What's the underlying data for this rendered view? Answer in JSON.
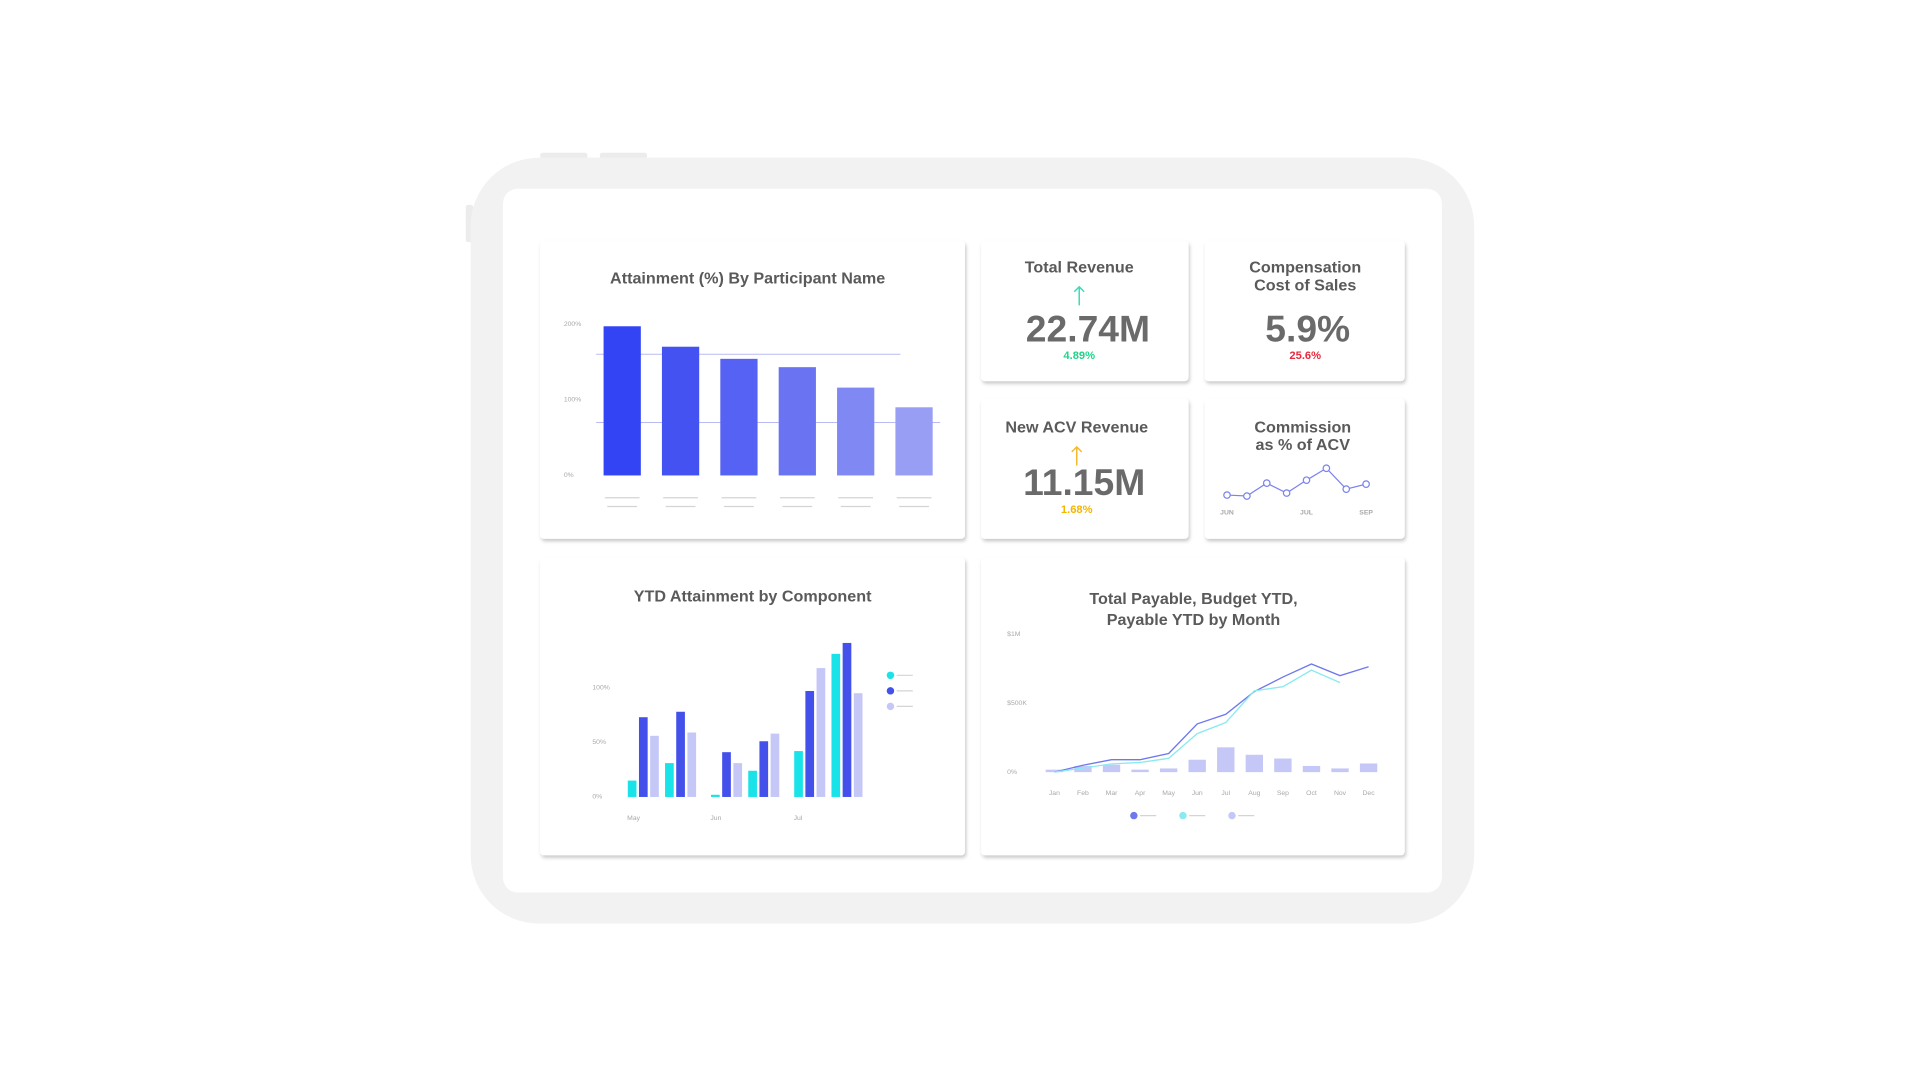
{
  "chart_data": [
    {
      "type": "bar",
      "title_lines": [
        "Attainment (%) By Participant Name"
      ],
      "categories": [
        null,
        null,
        null,
        null,
        null,
        null
      ],
      "values": [
        197,
        170,
        154,
        143,
        116,
        90
      ],
      "colors": [
        "#3344f5",
        "#4452f2",
        "#5662f3",
        "#6a73f2",
        "#8088f3",
        "#989ef4"
      ],
      "ylim": [
        0,
        200
      ],
      "yticks": [
        {
          "value": 0,
          "label": "0%"
        },
        {
          "value": 100,
          "label": "100%"
        },
        {
          "value": 200,
          "label": "200%"
        }
      ],
      "reference_lines": [
        160,
        70
      ]
    },
    {
      "type": "grouped_bar",
      "title_lines": [
        "YTD Attainment by Component"
      ],
      "categories": [
        "May",
        null,
        "Jun",
        null,
        "Jul",
        null
      ],
      "series": [
        {
          "color": "#19e3e8",
          "values": [
            15,
            31,
            2,
            24,
            42,
            131
          ]
        },
        {
          "color": "#4350ea",
          "values": [
            73,
            78,
            41,
            51,
            97,
            141
          ]
        },
        {
          "color": "#c5c8f7",
          "values": [
            56,
            59,
            31,
            58,
            118,
            95
          ]
        }
      ],
      "ylim": [
        0,
        150
      ],
      "yticks": [
        {
          "value": 0,
          "label": "0%"
        },
        {
          "value": 50,
          "label": "50%"
        },
        {
          "value": 100,
          "label": "100%"
        }
      ]
    },
    {
      "type": "combo",
      "title_lines": [
        "Total Payable, Budget YTD,",
        "Payable YTD by Month"
      ],
      "categories": [
        "Jan",
        "Feb",
        "Mar",
        "Apr",
        "May",
        "Jun",
        "Jul",
        "Aug",
        "Sep",
        "Oct",
        "Nov",
        "Dec"
      ],
      "series": [
        {
          "type": "line",
          "color": "#6f78ec",
          "values": [
            0,
            50000,
            90000,
            90000,
            135000,
            350000,
            420000,
            585000,
            690000,
            785000,
            700000,
            765000
          ]
        },
        {
          "type": "line",
          "color": "#8aeaf0",
          "values": [
            0,
            30000,
            60000,
            70000,
            100000,
            280000,
            360000,
            590000,
            620000,
            740000,
            650000,
            null
          ]
        },
        {
          "type": "bar",
          "color": "#c5c8f7",
          "values": [
            18000,
            45000,
            54000,
            18000,
            27000,
            90000,
            180000,
            126000,
            99000,
            45000,
            27000,
            63000
          ]
        }
      ],
      "ylim": [
        0,
        1000000
      ],
      "yticks": [
        {
          "value": 0,
          "label": "0%"
        },
        {
          "value": 500000,
          "label": "$500K"
        },
        {
          "value": 1000000,
          "label": "$1M"
        }
      ]
    },
    {
      "type": "line",
      "title_lines": [
        "Commission",
        "as % of ACV"
      ],
      "categories": [
        "JUN",
        null,
        null,
        null,
        "JUL",
        null,
        null,
        "SEP"
      ],
      "series": [
        {
          "color": "#7b83ee",
          "values": [
            1.4,
            1.3,
            2.6,
            1.6,
            2.9,
            4.1,
            2.0,
            2.5
          ]
        }
      ],
      "ylim": [
        0,
        5
      ]
    }
  ],
  "kpis": [
    {
      "title_lines": [
        "Total Revenue"
      ],
      "value": "22.74M",
      "change": "4.89%",
      "direction": "up",
      "arrow_color": "#3dd9b8",
      "change_color": "#22d38a"
    },
    {
      "title_lines": [
        "Compensation",
        "Cost of Sales"
      ],
      "value": "5.9%",
      "change": "25.6%",
      "change_color": "#e8283c"
    },
    {
      "title_lines": [
        "New ACV Revenue"
      ],
      "value": "11.15M",
      "change": "1.68%",
      "direction": "up",
      "arrow_color": "#f5b82e",
      "change_color": "#f5b400"
    }
  ]
}
